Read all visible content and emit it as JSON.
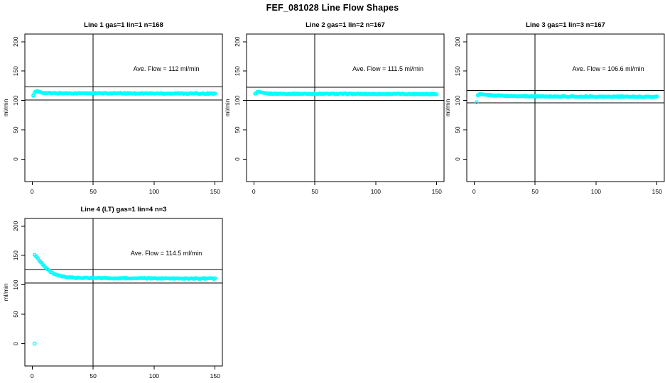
{
  "page_title": "FEF_081028  Line Flow Shapes",
  "style": {
    "point_color": "#00FFFF",
    "line_color": "#000000",
    "background": "#ffffff"
  },
  "chart_data": [
    {
      "type": "scatter",
      "title": "Line 1 gas=1 lin=1 n=168",
      "annotation": "Ave. Flow =  112  ml/min",
      "ave_flow": 112,
      "n": 168,
      "xlabel": "",
      "ylabel": "ml/min",
      "xlim": [
        -6,
        156
      ],
      "ylim": [
        -38,
        213
      ],
      "x_ticks": [
        0,
        50,
        100,
        150
      ],
      "y_ticks": [
        0,
        50,
        100,
        150,
        200
      ],
      "vline_x": 50,
      "ref_lines": [
        100.8,
        123.2
      ],
      "n_render": 168,
      "profile_points": [
        [
          1,
          110
        ],
        [
          2,
          113.5
        ],
        [
          3,
          115
        ],
        [
          5,
          115.3
        ],
        [
          7,
          114
        ],
        [
          10,
          112.8
        ],
        [
          15,
          112.4
        ],
        [
          25,
          112.3
        ],
        [
          50,
          112.2
        ],
        [
          100,
          112
        ],
        [
          150,
          111.8
        ]
      ],
      "extra_points": [
        [
          1,
          108
        ]
      ]
    },
    {
      "type": "scatter",
      "title": "Line 2 gas=1 lin=2 n=167",
      "annotation": "Ave. Flow =  111.5  ml/min",
      "ave_flow": 111.5,
      "n": 167,
      "xlabel": "",
      "ylabel": "ml/min",
      "xlim": [
        -6,
        156
      ],
      "ylim": [
        -38,
        213
      ],
      "x_ticks": [
        0,
        50,
        100,
        150
      ],
      "y_ticks": [
        0,
        50,
        100,
        150,
        200
      ],
      "vline_x": 50,
      "ref_lines": [
        100.35,
        122.65
      ],
      "n_render": 167,
      "profile_points": [
        [
          1,
          111
        ],
        [
          2,
          113
        ],
        [
          3,
          114.5
        ],
        [
          4,
          114.8
        ],
        [
          6,
          113
        ],
        [
          9,
          112
        ],
        [
          14,
          111.6
        ],
        [
          25,
          111.4
        ],
        [
          50,
          111.3
        ],
        [
          100,
          111.1
        ],
        [
          150,
          111
        ]
      ],
      "extra_points": []
    },
    {
      "type": "scatter",
      "title": "Line 3 gas=1 lin=3 n=167",
      "annotation": "Ave. Flow =  106.6  ml/min",
      "ave_flow": 106.6,
      "n": 167,
      "xlabel": "",
      "ylabel": "ml/min",
      "xlim": [
        -6,
        156
      ],
      "ylim": [
        -38,
        213
      ],
      "x_ticks": [
        0,
        50,
        100,
        150
      ],
      "y_ticks": [
        0,
        50,
        100,
        150,
        200
      ],
      "vline_x": 50,
      "ref_lines": [
        95.9,
        117.3
      ],
      "n_render": 167,
      "profile_points": [
        [
          3,
          109.5
        ],
        [
          4,
          110.5
        ],
        [
          6,
          110.3
        ],
        [
          9,
          109.6
        ],
        [
          13,
          109
        ],
        [
          20,
          108.3
        ],
        [
          30,
          107.6
        ],
        [
          45,
          107.2
        ],
        [
          70,
          106.8
        ],
        [
          100,
          106.5
        ],
        [
          150,
          106.2
        ]
      ],
      "extra_points": [
        [
          2,
          97
        ]
      ]
    },
    {
      "type": "scatter",
      "title": "Line 4 (LT) gas=1 lin=4 n=3",
      "annotation": "Ave. Flow =  114.5  ml/min",
      "ave_flow": 114.5,
      "n": 3,
      "xlabel": "",
      "ylabel": "ml/min",
      "xlim": [
        -6,
        156
      ],
      "ylim": [
        -38,
        213
      ],
      "x_ticks": [
        0,
        50,
        100,
        150
      ],
      "y_ticks": [
        0,
        50,
        100,
        150,
        200
      ],
      "vline_x": 50,
      "ref_lines": [
        103.05,
        125.95
      ],
      "n_render": 160,
      "profile_points": [
        [
          2,
          151
        ],
        [
          3,
          149
        ],
        [
          4,
          146.5
        ],
        [
          5,
          144
        ],
        [
          6,
          141.5
        ],
        [
          7,
          139
        ],
        [
          8,
          136.5
        ],
        [
          9,
          134
        ],
        [
          10,
          131.5
        ],
        [
          11,
          129.5
        ],
        [
          12,
          127.5
        ],
        [
          13,
          125.5
        ],
        [
          14,
          124
        ],
        [
          15,
          122.5
        ],
        [
          16,
          121
        ],
        [
          17,
          119.8
        ],
        [
          18,
          118.7
        ],
        [
          19,
          117.7
        ],
        [
          20,
          116.8
        ],
        [
          22,
          115.4
        ],
        [
          24,
          114.4
        ],
        [
          26,
          113.7
        ],
        [
          28,
          113.2
        ],
        [
          30,
          112.8
        ],
        [
          35,
          112.2
        ],
        [
          40,
          111.9
        ],
        [
          50,
          111.6
        ],
        [
          70,
          111.3
        ],
        [
          100,
          111.1
        ],
        [
          150,
          110.8
        ]
      ],
      "extra_points": [
        [
          2,
          0
        ]
      ]
    }
  ]
}
